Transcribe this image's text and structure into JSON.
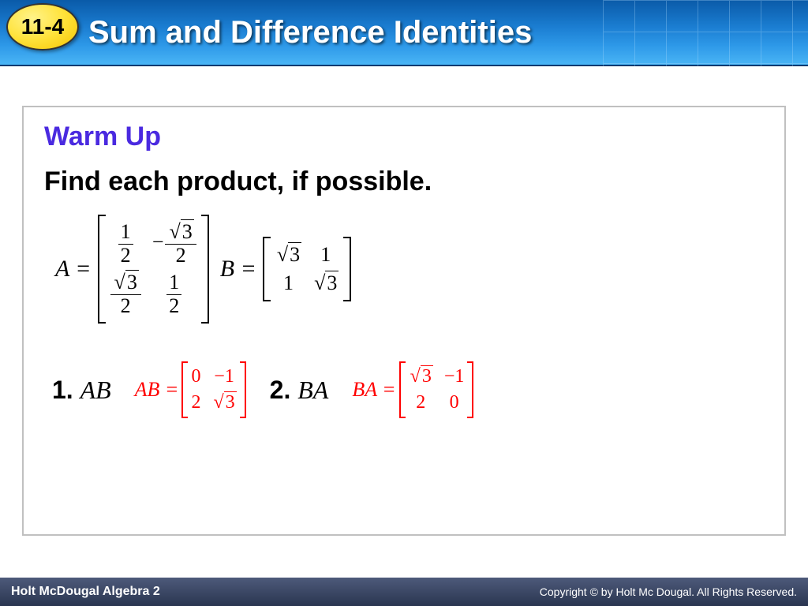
{
  "header": {
    "lesson_number": "11-4",
    "title": "Sum and Difference Identities",
    "badge_bg": "#ffe23a",
    "bar_gradient_top": "#0a5aa8",
    "bar_gradient_bottom": "#4ab5f5"
  },
  "content": {
    "warmup_label": "Warm Up",
    "warmup_color": "#4a2ae0",
    "instruction": "Find each product, if possible.",
    "matrixA": {
      "label": "A =",
      "cells": [
        [
          {
            "type": "frac",
            "num": "1",
            "den": "2"
          },
          {
            "type": "negfrac",
            "num": "√3",
            "den": "2"
          }
        ],
        [
          {
            "type": "frac",
            "num": "√3",
            "den": "2"
          },
          {
            "type": "frac",
            "num": "1",
            "den": "2"
          }
        ]
      ]
    },
    "matrixB": {
      "label": "B =",
      "cells": [
        [
          {
            "type": "text",
            "v": "√3"
          },
          {
            "type": "text",
            "v": "1"
          }
        ],
        [
          {
            "type": "text",
            "v": "1"
          },
          {
            "type": "text",
            "v": "√3"
          }
        ]
      ]
    },
    "questions": [
      {
        "number": "1.",
        "var": "AB",
        "answer_label": "AB =",
        "answer_color": "#ff0000",
        "cells": [
          [
            {
              "type": "text",
              "v": "0"
            },
            {
              "type": "text",
              "v": "−1"
            }
          ],
          [
            {
              "type": "text",
              "v": "2"
            },
            {
              "type": "text",
              "v": "√3"
            }
          ]
        ]
      },
      {
        "number": "2.",
        "var": "BA",
        "answer_label": "BA =",
        "answer_color": "#ff0000",
        "cells": [
          [
            {
              "type": "text",
              "v": "√3"
            },
            {
              "type": "text",
              "v": "−1"
            }
          ],
          [
            {
              "type": "text",
              "v": "2"
            },
            {
              "type": "text",
              "v": "0"
            }
          ]
        ]
      }
    ]
  },
  "footer": {
    "left": "Holt McDougal Algebra 2",
    "right": "Copyright © by Holt Mc Dougal. All Rights Reserved."
  }
}
